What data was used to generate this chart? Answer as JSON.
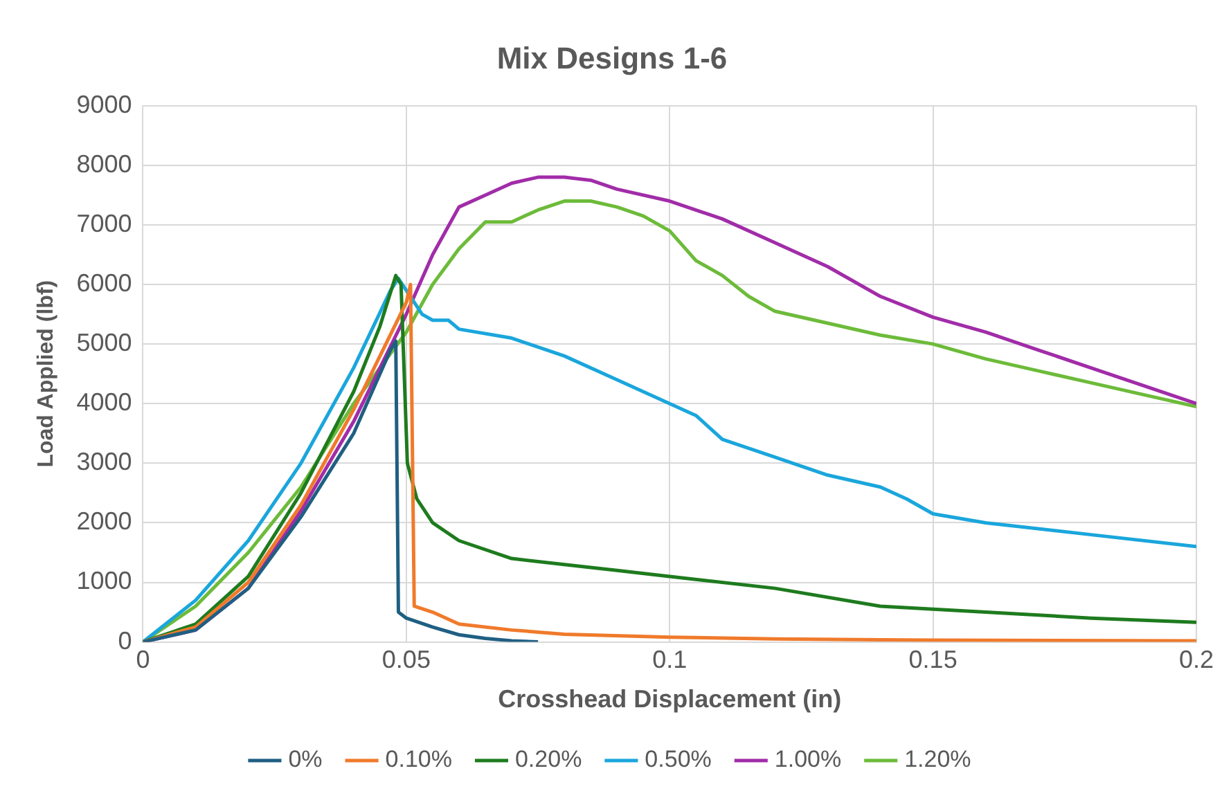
{
  "chart_data": {
    "type": "line",
    "title": "Mix Designs 1-6",
    "xlabel": "Crosshead Displacement (in)",
    "ylabel": "Load Applied (lbf)",
    "xlim": [
      0,
      0.2
    ],
    "xticks": [
      0,
      0.05,
      0.1,
      0.15,
      0.2
    ],
    "ylim": [
      0,
      9000
    ],
    "yticks": [
      0,
      1000,
      2000,
      3000,
      4000,
      5000,
      6000,
      7000,
      8000,
      9000
    ],
    "grid": true,
    "legend": "bottom",
    "marker": "none",
    "line_style": "solid",
    "series": [
      {
        "name": "0%",
        "color": "#1f5f82",
        "x": [
          0,
          0.01,
          0.02,
          0.03,
          0.04,
          0.047,
          0.048,
          0.0485,
          0.05,
          0.055,
          0.06,
          0.065,
          0.07,
          0.075
        ],
        "values": [
          0,
          200,
          900,
          2100,
          3500,
          4900,
          5050,
          500,
          400,
          250,
          120,
          60,
          20,
          0
        ]
      },
      {
        "name": "0.10%",
        "color": "#f07a2b",
        "x": [
          0,
          0.01,
          0.02,
          0.03,
          0.04,
          0.05,
          0.0508,
          0.0515,
          0.055,
          0.06,
          0.07,
          0.08,
          0.1,
          0.12,
          0.15,
          0.2
        ],
        "values": [
          0,
          250,
          1000,
          2300,
          3900,
          5700,
          6000,
          600,
          500,
          300,
          200,
          130,
          80,
          50,
          30,
          20
        ]
      },
      {
        "name": "0.20%",
        "color": "#1e7b1e",
        "x": [
          0,
          0.01,
          0.02,
          0.03,
          0.04,
          0.045,
          0.048,
          0.049,
          0.0502,
          0.052,
          0.055,
          0.06,
          0.07,
          0.08,
          0.09,
          0.1,
          0.12,
          0.14,
          0.15,
          0.16,
          0.18,
          0.2
        ],
        "values": [
          0,
          300,
          1100,
          2500,
          4200,
          5300,
          6150,
          6000,
          3000,
          2400,
          2000,
          1700,
          1400,
          1300,
          1200,
          1100,
          900,
          600,
          550,
          500,
          400,
          330
        ]
      },
      {
        "name": "0.50%",
        "color": "#1aa6dc",
        "x": [
          0,
          0.01,
          0.02,
          0.03,
          0.04,
          0.047,
          0.0485,
          0.05,
          0.053,
          0.055,
          0.058,
          0.06,
          0.07,
          0.08,
          0.09,
          0.1,
          0.105,
          0.11,
          0.12,
          0.13,
          0.14,
          0.145,
          0.15,
          0.16,
          0.18,
          0.2
        ],
        "values": [
          0,
          700,
          1700,
          3000,
          4600,
          5900,
          6100,
          5900,
          5500,
          5400,
          5400,
          5250,
          5100,
          4800,
          4400,
          4000,
          3800,
          3400,
          3100,
          2800,
          2600,
          2400,
          2150,
          2000,
          1800,
          1600
        ]
      },
      {
        "name": "1.00%",
        "color": "#a12ca8",
        "x": [
          0,
          0.01,
          0.02,
          0.03,
          0.04,
          0.05,
          0.055,
          0.06,
          0.065,
          0.07,
          0.075,
          0.08,
          0.085,
          0.09,
          0.1,
          0.11,
          0.12,
          0.13,
          0.14,
          0.15,
          0.16,
          0.17,
          0.18,
          0.19,
          0.2
        ],
        "values": [
          0,
          200,
          900,
          2200,
          3700,
          5500,
          6500,
          7300,
          7500,
          7700,
          7800,
          7800,
          7750,
          7600,
          7400,
          7100,
          6700,
          6300,
          5800,
          5450,
          5200,
          4900,
          4600,
          4300,
          4000
        ]
      },
      {
        "name": "1.20%",
        "color": "#6dbb3a",
        "x": [
          0,
          0.01,
          0.02,
          0.03,
          0.04,
          0.045,
          0.05,
          0.055,
          0.06,
          0.065,
          0.07,
          0.075,
          0.08,
          0.085,
          0.09,
          0.095,
          0.1,
          0.105,
          0.11,
          0.115,
          0.12,
          0.13,
          0.14,
          0.15,
          0.16,
          0.17,
          0.18,
          0.19,
          0.2
        ],
        "values": [
          0,
          600,
          1500,
          2600,
          4000,
          4600,
          5200,
          6000,
          6600,
          7050,
          7050,
          7250,
          7400,
          7400,
          7300,
          7150,
          6900,
          6400,
          6150,
          5800,
          5550,
          5350,
          5150,
          5000,
          4750,
          4550,
          4350,
          4150,
          3950
        ]
      }
    ]
  }
}
